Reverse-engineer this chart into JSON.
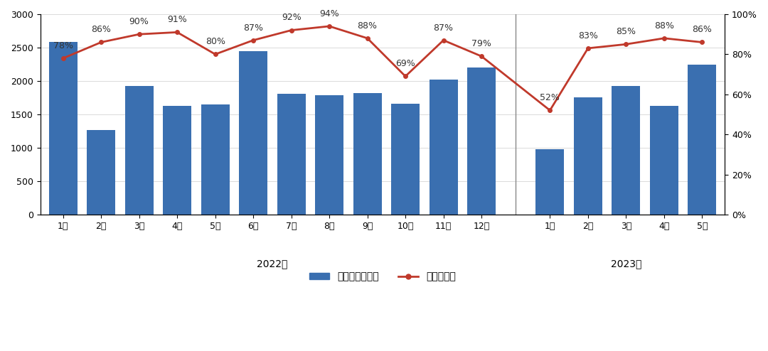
{
  "categories_2022": [
    "1月",
    "2月",
    "3月",
    "4月",
    "5月",
    "6月",
    "7月",
    "8月",
    "9月",
    "10月",
    "11月",
    "12月"
  ],
  "categories_2023": [
    "1月",
    "2月",
    "3月",
    "4月",
    "5月"
  ],
  "shipments_2022": [
    2580,
    1260,
    1920,
    1630,
    1650,
    2450,
    1810,
    1790,
    1820,
    1660,
    2020,
    2200
  ],
  "shipments_2023": [
    980,
    1760,
    1920,
    1630,
    2240
  ],
  "ratio_2022": [
    78,
    86,
    90,
    91,
    80,
    87,
    92,
    94,
    88,
    69,
    87,
    79
  ],
  "ratio_2023": [
    52,
    83,
    85,
    88,
    86
  ],
  "bar_color": "#3A6FB0",
  "line_color": "#C0392B",
  "year_label_2022": "2022年",
  "year_label_2023": "2023年",
  "legend_bar": "出货量（万部）",
  "legend_line": "出货量占比",
  "ylim_left": [
    0,
    3000
  ],
  "ylim_right": [
    0,
    100
  ],
  "yticks_left": [
    0,
    500,
    1000,
    1500,
    2000,
    2500,
    3000
  ],
  "yticks_right": [
    0,
    20,
    40,
    60,
    80,
    100
  ],
  "background_color": "#FFFFFF",
  "divider_color": "#888888"
}
